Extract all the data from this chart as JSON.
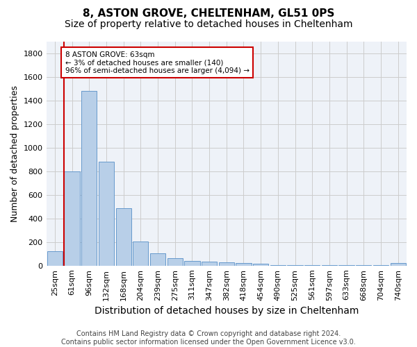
{
  "title1": "8, ASTON GROVE, CHELTENHAM, GL51 0PS",
  "title2": "Size of property relative to detached houses in Cheltenham",
  "xlabel": "Distribution of detached houses by size in Cheltenham",
  "ylabel": "Number of detached properties",
  "footer1": "Contains HM Land Registry data © Crown copyright and database right 2024.",
  "footer2": "Contains public sector information licensed under the Open Government Licence v3.0.",
  "categories": [
    "25sqm",
    "61sqm",
    "96sqm",
    "132sqm",
    "168sqm",
    "204sqm",
    "239sqm",
    "275sqm",
    "311sqm",
    "347sqm",
    "382sqm",
    "418sqm",
    "454sqm",
    "490sqm",
    "525sqm",
    "561sqm",
    "597sqm",
    "633sqm",
    "668sqm",
    "704sqm",
    "740sqm"
  ],
  "values": [
    120,
    800,
    1480,
    880,
    490,
    205,
    105,
    65,
    40,
    33,
    30,
    20,
    15,
    5,
    5,
    5,
    5,
    5,
    5,
    5,
    20
  ],
  "bar_color": "#b8cfe8",
  "bar_edge_color": "#6699cc",
  "highlight_color": "#cc0000",
  "annotation_text": "8 ASTON GROVE: 63sqm\n← 3% of detached houses are smaller (140)\n96% of semi-detached houses are larger (4,094) →",
  "annotation_box_color": "#ffffff",
  "annotation_box_edge": "#cc0000",
  "ylim": [
    0,
    1900
  ],
  "yticks": [
    0,
    200,
    400,
    600,
    800,
    1000,
    1200,
    1400,
    1600,
    1800
  ],
  "grid_color": "#cccccc",
  "bg_color": "#eef2f8",
  "title1_fontsize": 11,
  "title2_fontsize": 10,
  "ylabel_fontsize": 9,
  "xlabel_fontsize": 10,
  "tick_fontsize": 8,
  "footer_fontsize": 7
}
